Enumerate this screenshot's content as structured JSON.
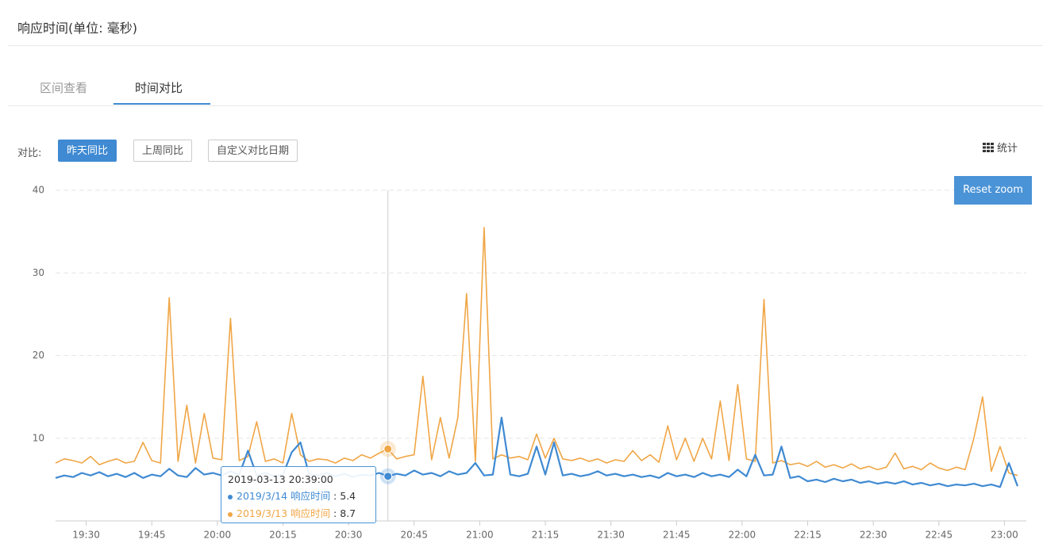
{
  "header": {
    "title": "响应时间(单位: 毫秒)"
  },
  "tabs": [
    "区间查看",
    "时间对比"
  ],
  "compare": {
    "label": "对比:",
    "buttons": [
      "昨天同比",
      "上周同比",
      "自定义对比日期"
    ]
  },
  "stats_label": "统计",
  "reset_zoom": "Reset zoom",
  "tooltip": {
    "title": "2019-03-13 20:39:00"
  },
  "chart_data": {
    "type": "line",
    "x": [
      "19:23",
      "19:25",
      "19:27",
      "19:29",
      "19:31",
      "19:33",
      "19:35",
      "19:37",
      "19:39",
      "19:41",
      "19:43",
      "19:45",
      "19:47",
      "19:49",
      "19:51",
      "19:53",
      "19:55",
      "19:57",
      "19:59",
      "20:01",
      "20:03",
      "20:05",
      "20:07",
      "20:09",
      "20:11",
      "20:13",
      "20:15",
      "20:17",
      "20:19",
      "20:21",
      "20:23",
      "20:25",
      "20:27",
      "20:29",
      "20:31",
      "20:33",
      "20:35",
      "20:37",
      "20:39",
      "20:41",
      "20:43",
      "20:45",
      "20:47",
      "20:49",
      "20:51",
      "20:53",
      "20:55",
      "20:57",
      "20:59",
      "21:01",
      "21:03",
      "21:05",
      "21:07",
      "21:09",
      "21:11",
      "21:13",
      "21:15",
      "21:17",
      "21:19",
      "21:21",
      "21:23",
      "21:25",
      "21:27",
      "21:29",
      "21:31",
      "21:33",
      "21:35",
      "21:37",
      "21:39",
      "21:41",
      "21:43",
      "21:45",
      "21:47",
      "21:49",
      "21:51",
      "21:53",
      "21:55",
      "21:57",
      "21:59",
      "22:01",
      "22:03",
      "22:05",
      "22:07",
      "22:09",
      "22:11",
      "22:13",
      "22:15",
      "22:17",
      "22:19",
      "22:21",
      "22:23",
      "22:25",
      "22:27",
      "22:29",
      "22:31",
      "22:33",
      "22:35",
      "22:37",
      "22:39",
      "22:41",
      "22:43",
      "22:45",
      "22:47",
      "22:49",
      "22:51",
      "22:53",
      "22:55",
      "22:57",
      "22:59",
      "23:01",
      "23:03"
    ],
    "xlim": [
      "19:23",
      "23:05"
    ],
    "xticks": [
      "19:30",
      "19:45",
      "20:00",
      "20:15",
      "20:30",
      "20:45",
      "21:00",
      "21:15",
      "21:30",
      "21:45",
      "22:00",
      "22:15",
      "22:30",
      "22:45",
      "23:00"
    ],
    "ylim": [
      0,
      40
    ],
    "yticks": [
      10,
      20,
      30,
      40
    ],
    "grid": true,
    "series": [
      {
        "name": "2019/3/14 响应时间",
        "color": "#3f8ad2",
        "values": [
          5.2,
          5.5,
          5.3,
          5.8,
          5.5,
          5.9,
          5.4,
          5.7,
          5.3,
          5.8,
          5.2,
          5.6,
          5.4,
          6.3,
          5.5,
          5.3,
          6.4,
          5.6,
          5.8,
          5.5,
          6,
          5.6,
          8.5,
          5.5,
          5.8,
          5.4,
          5.6,
          8.3,
          9.5,
          5.6,
          5.5,
          5.8,
          5.4,
          5.7,
          5.3,
          5.6,
          5.5,
          5.8,
          5.4,
          5.7,
          5.5,
          6.1,
          5.6,
          5.8,
          5.4,
          6,
          5.6,
          5.8,
          7,
          5.5,
          5.6,
          12.5,
          5.6,
          5.4,
          5.7,
          9,
          5.6,
          9.5,
          5.5,
          5.7,
          5.4,
          5.6,
          6,
          5.5,
          5.7,
          5.4,
          5.6,
          5.3,
          5.5,
          5.2,
          5.8,
          5.4,
          5.6,
          5.3,
          5.8,
          5.4,
          5.6,
          5.3,
          6.2,
          5.4,
          8,
          5.5,
          5.6,
          9,
          5.2,
          5.4,
          4.8,
          5,
          4.7,
          5.1,
          4.8,
          5,
          4.6,
          4.8,
          4.5,
          4.7,
          4.5,
          4.8,
          4.4,
          4.6,
          4.3,
          4.5,
          4.2,
          4.4,
          4.3,
          4.5,
          4.2,
          4.4,
          4.1,
          7,
          4.2
        ]
      },
      {
        "name": "2019/3/13 响应时间",
        "color": "#f0a646",
        "values": [
          7,
          7.5,
          7.3,
          7,
          7.8,
          6.8,
          7.2,
          7.5,
          7,
          7.2,
          9.5,
          7.3,
          7,
          27,
          7.2,
          14,
          7,
          13,
          7.6,
          7.4,
          24.5,
          7.3,
          7.8,
          12,
          7.2,
          7.5,
          7,
          13,
          8,
          7.2,
          7.5,
          7.4,
          7,
          7.6,
          7.3,
          8,
          7.6,
          8.2,
          8.7,
          7.5,
          7.8,
          8,
          17.5,
          7.4,
          12.5,
          7.6,
          12.5,
          27.5,
          7.2,
          35.5,
          7.5,
          8,
          7.6,
          7.8,
          7.4,
          10.5,
          7.6,
          10,
          7.5,
          7.3,
          7.6,
          7.2,
          7.5,
          7,
          7.4,
          7.2,
          8.5,
          7.3,
          8,
          7.1,
          11.5,
          7.4,
          10,
          7.2,
          10,
          7.5,
          14.5,
          7.3,
          16.5,
          7.5,
          7.2,
          26.8,
          7,
          7.3,
          6.8,
          7,
          6.6,
          7.2,
          6.5,
          6.8,
          6.4,
          6.9,
          6.3,
          6.6,
          6.2,
          6.5,
          8.2,
          6.3,
          6.6,
          6.2,
          7,
          6.4,
          6.1,
          6.5,
          6.2,
          10,
          15,
          6,
          9,
          5.8,
          5.5
        ]
      }
    ]
  }
}
